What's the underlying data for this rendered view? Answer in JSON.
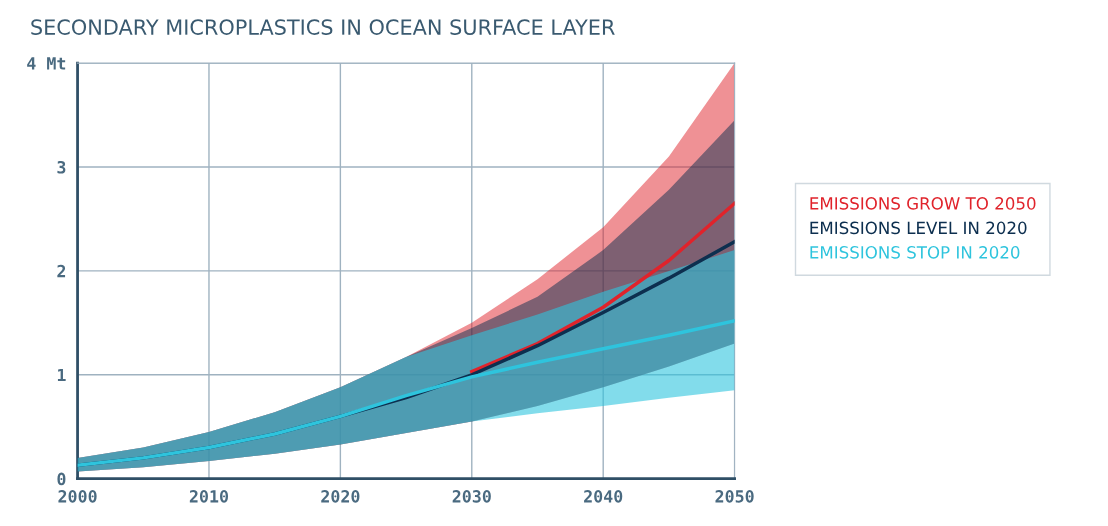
{
  "chart_data": {
    "type": "line",
    "title": "SECONDARY MICROPLASTICS IN OCEAN SURFACE LAYER",
    "x": [
      2000,
      2005,
      2010,
      2015,
      2020,
      2025,
      2030,
      2035,
      2040,
      2045,
      2050
    ],
    "series": [
      {
        "name": "EMISSIONS GROW TO 2050",
        "color": "#e0232b",
        "values": [
          null,
          null,
          null,
          null,
          null,
          null,
          1.03,
          1.3,
          1.65,
          2.1,
          2.65
        ],
        "lower": [
          0.07,
          0.11,
          0.17,
          0.24,
          0.33,
          0.44,
          0.55,
          0.7,
          0.88,
          1.08,
          1.3
        ],
        "upper": [
          0.2,
          0.3,
          0.45,
          0.64,
          0.88,
          1.17,
          1.5,
          1.92,
          2.42,
          3.1,
          4.0
        ]
      },
      {
        "name": "EMISSIONS LEVEL IN 2020",
        "color": "#0d2f4f",
        "values": [
          0.13,
          0.2,
          0.3,
          0.43,
          0.6,
          0.78,
          1.0,
          1.28,
          1.6,
          1.93,
          2.28
        ],
        "lower": [
          0.07,
          0.11,
          0.17,
          0.24,
          0.33,
          0.44,
          0.55,
          0.7,
          0.88,
          1.08,
          1.3
        ],
        "upper": [
          0.2,
          0.3,
          0.45,
          0.64,
          0.88,
          1.17,
          1.45,
          1.75,
          2.2,
          2.78,
          3.45
        ]
      },
      {
        "name": "EMISSIONS STOP IN 2020",
        "color": "#2ec4dd",
        "values": [
          0.13,
          0.2,
          0.3,
          0.43,
          0.6,
          0.8,
          0.98,
          1.12,
          1.25,
          1.38,
          1.52
        ],
        "lower": [
          0.07,
          0.11,
          0.17,
          0.24,
          0.33,
          0.44,
          0.55,
          0.63,
          0.7,
          0.78,
          0.85
        ],
        "upper": [
          0.2,
          0.3,
          0.45,
          0.64,
          0.88,
          1.17,
          1.38,
          1.58,
          1.8,
          2.0,
          2.2
        ]
      }
    ],
    "xlim": [
      2000,
      2050
    ],
    "xticks": [
      2000,
      2010,
      2020,
      2030,
      2040,
      2050
    ],
    "ylim": [
      0,
      4
    ],
    "yticks": [
      0,
      1,
      2,
      3,
      {
        "value": 4,
        "label": "4 Mt"
      }
    ],
    "grid": true,
    "legend": "right",
    "line_style": "solid",
    "marker": "none"
  }
}
